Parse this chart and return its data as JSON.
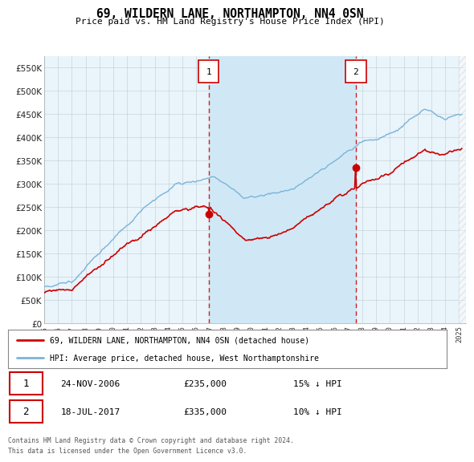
{
  "title": "69, WILDERN LANE, NORTHAMPTON, NN4 0SN",
  "subtitle": "Price paid vs. HM Land Registry's House Price Index (HPI)",
  "legend_line1": "69, WILDERN LANE, NORTHAMPTON, NN4 0SN (detached house)",
  "legend_line2": "HPI: Average price, detached house, West Northamptonshire",
  "sale1_date": "24-NOV-2006",
  "sale1_price": 235000,
  "sale1_note": "15% ↓ HPI",
  "sale2_date": "18-JUL-2017",
  "sale2_price": 335000,
  "sale2_note": "10% ↓ HPI",
  "sale1_year": 2006.9,
  "sale2_year": 2017.54,
  "hpi_color": "#7ab4d8",
  "price_color": "#cc0000",
  "bg_color": "#ffffff",
  "chart_bg": "#eaf4fb",
  "shaded_region_color": "#d0e8f5",
  "grid_color": "#b0bec5",
  "xmin": 1995,
  "xmax": 2025.5,
  "ymin": 0,
  "ymax": 575000,
  "footer": "Contains HM Land Registry data © Crown copyright and database right 2024.\nThis data is licensed under the Open Government Licence v3.0."
}
